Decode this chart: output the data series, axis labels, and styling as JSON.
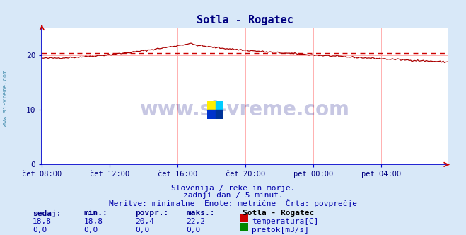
{
  "title": "Sotla - Rogatec",
  "title_color": "#000080",
  "title_fontsize": 11,
  "bg_color": "#d8e8f8",
  "plot_bg_color": "#ffffff",
  "grid_color": "#ffb0b0",
  "spine_color": "#0000cc",
  "arrow_color": "#cc0000",
  "x_label_color": "#000080",
  "y_label_color": "#000080",
  "text_color": "#0000aa",
  "watermark": "www.si-vreme.com",
  "watermark_color": "#000080",
  "subtitle1": "Slovenija / reke in morje.",
  "subtitle2": "zadnji dan / 5 minut.",
  "subtitle3": "Meritve: minimalne  Enote: metrične  Črta: povprečje",
  "avg_line": 20.4,
  "avg_line_color": "#cc0000",
  "temp_line_color": "#aa0000",
  "flow_line_color": "#008800",
  "ylim": [
    0,
    25
  ],
  "yticks": [
    0,
    10,
    20
  ],
  "n_points": 288,
  "sidebar_text": "www.si-vreme.com",
  "sidebar_color": "#4a90b0",
  "legend_title": "Sotla - Rogatec",
  "legend_items": [
    "temperatura[C]",
    "pretok[m3/s]"
  ],
  "legend_colors": [
    "#cc0000",
    "#008800"
  ],
  "stats_headers": [
    "sedaj:",
    "min.:",
    "povpr.:",
    "maks.:"
  ],
  "stats_temp": [
    "18,8",
    "18,8",
    "20,4",
    "22,2"
  ],
  "stats_flow": [
    "0,0",
    "0,0",
    "0,0",
    "0,0"
  ],
  "xtick_labels": [
    "čet 08:00",
    "čet 12:00",
    "čet 16:00",
    "čet 20:00",
    "pet 00:00",
    "pet 04:00"
  ],
  "xtick_positions": [
    0,
    48,
    96,
    144,
    192,
    240
  ],
  "logo_colors": [
    "#ffee00",
    "#00ccff",
    "#0033cc",
    "#000000"
  ]
}
